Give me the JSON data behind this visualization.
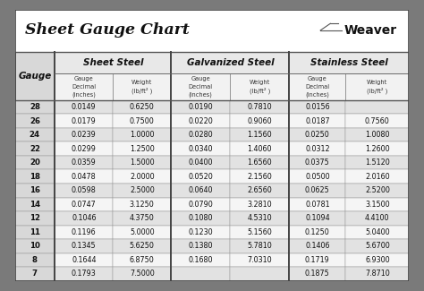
{
  "title": "Sheet Gauge Chart",
  "bg_outer": "#7a7a7a",
  "bg_inner": "#ffffff",
  "row_bg_odd": "#e2e2e2",
  "row_bg_even": "#f5f5f5",
  "gauges": [
    28,
    26,
    24,
    22,
    20,
    18,
    16,
    14,
    12,
    11,
    10,
    8,
    7
  ],
  "sheet_steel_decimal": [
    "0.0149",
    "0.0179",
    "0.0239",
    "0.0299",
    "0.0359",
    "0.0478",
    "0.0598",
    "0.0747",
    "0.1046",
    "0.1196",
    "0.1345",
    "0.1644",
    "0.1793"
  ],
  "sheet_steel_weight": [
    "0.6250",
    "0.7500",
    "1.0000",
    "1.2500",
    "1.5000",
    "2.0000",
    "2.5000",
    "3.1250",
    "4.3750",
    "5.0000",
    "5.6250",
    "6.8750",
    "7.5000"
  ],
  "galv_decimal": [
    "0.0190",
    "0.0220",
    "0.0280",
    "0.0340",
    "0.0400",
    "0.0520",
    "0.0640",
    "0.0790",
    "0.1080",
    "0.1230",
    "0.1380",
    "0.1680",
    ""
  ],
  "galv_weight": [
    "0.7810",
    "0.9060",
    "1.1560",
    "1.4060",
    "1.6560",
    "2.1560",
    "2.6560",
    "3.2810",
    "4.5310",
    "5.1560",
    "5.7810",
    "7.0310",
    ""
  ],
  "ss_decimal": [
    "0.0156",
    "0.0187",
    "0.0250",
    "0.0312",
    "0.0375",
    "0.0500",
    "0.0625",
    "0.0781",
    "0.1094",
    "0.1250",
    "0.1406",
    "0.1719",
    "0.1875"
  ],
  "ss_weight": [
    "",
    "0.7560",
    "1.0080",
    "1.2600",
    "1.5120",
    "2.0160",
    "2.5200",
    "3.1500",
    "4.4100",
    "5.0400",
    "5.6700",
    "6.9300",
    "7.8710"
  ],
  "weaver_text": "Weaver",
  "col_group_names": [
    "Sheet Steel",
    "Galvanized Steel",
    "Stainless Steel"
  ],
  "sub_col1": "Gauge\nDecimal\n(inches)",
  "sub_col2": "Weight\n(lb/ft² )"
}
